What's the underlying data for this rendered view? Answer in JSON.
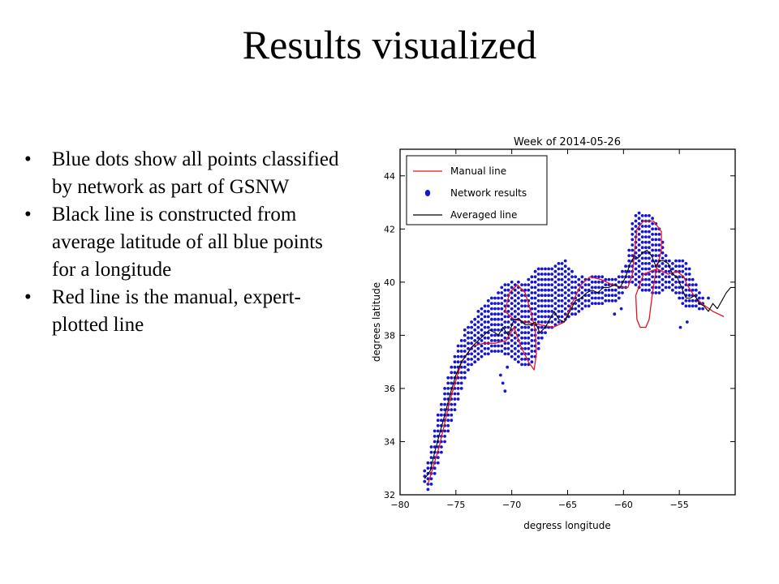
{
  "slide": {
    "title": "Results visualized",
    "bullets": [
      "Blue dots show all points classified by network as part of GSNW",
      "Black line is constructed from average latitude of all blue points for a longitude",
      "Red line is the manual, expert-plotted line"
    ]
  },
  "chart_data": {
    "type": "line",
    "title": "Week of 2014-05-26",
    "xlabel": "degress longitude",
    "ylabel": "degrees latitude",
    "xlim": [
      -80,
      -50
    ],
    "ylim": [
      32,
      45
    ],
    "xticks": [
      -80,
      -75,
      -70,
      -65,
      -60,
      -55
    ],
    "yticks": [
      32,
      34,
      36,
      38,
      40,
      42,
      44
    ],
    "grid": false,
    "legend_position": "top-left",
    "colors": {
      "manual": "#e8141c",
      "network": "#1515d4",
      "averaged": "#000000"
    },
    "series": [
      {
        "name": "Manual line",
        "kind": "line",
        "points": [
          [
            -77.5,
            32.4
          ],
          [
            -76.5,
            33.8
          ],
          [
            -75.5,
            35.6
          ],
          [
            -74.5,
            37.0
          ],
          [
            -73.5,
            37.6
          ],
          [
            -72.5,
            37.7
          ],
          [
            -71.5,
            37.7
          ],
          [
            -70.5,
            37.8
          ],
          [
            -69.8,
            38.3
          ],
          [
            -69.2,
            37.6
          ],
          [
            -68.5,
            37.0
          ],
          [
            -68.0,
            36.7
          ],
          [
            -67.8,
            37.3
          ],
          [
            -67.9,
            38.2
          ],
          [
            -68.3,
            38.9
          ],
          [
            -68.8,
            39.6
          ],
          [
            -69.5,
            39.9
          ],
          [
            -70.2,
            39.6
          ],
          [
            -70.6,
            38.9
          ],
          [
            -69.8,
            38.6
          ],
          [
            -68.8,
            38.5
          ],
          [
            -67.5,
            38.4
          ],
          [
            -66.3,
            38.3
          ],
          [
            -65.3,
            38.5
          ],
          [
            -64.5,
            39.3
          ],
          [
            -63.8,
            39.9
          ],
          [
            -63.0,
            40.2
          ],
          [
            -62.0,
            40.1
          ],
          [
            -61.0,
            39.9
          ],
          [
            -60.2,
            39.8
          ],
          [
            -59.6,
            39.8
          ],
          [
            -59.2,
            40.3
          ],
          [
            -59.0,
            41.2
          ],
          [
            -58.8,
            42.0
          ],
          [
            -58.2,
            42.3
          ],
          [
            -57.3,
            42.3
          ],
          [
            -56.6,
            41.9
          ],
          [
            -56.6,
            41.2
          ],
          [
            -57.1,
            40.4
          ],
          [
            -57.4,
            39.6
          ],
          [
            -57.7,
            38.6
          ],
          [
            -58.0,
            38.3
          ],
          [
            -58.5,
            38.3
          ],
          [
            -58.8,
            38.6
          ],
          [
            -58.9,
            39.5
          ],
          [
            -58.2,
            40.3
          ],
          [
            -57.0,
            40.5
          ],
          [
            -56.0,
            40.3
          ],
          [
            -55.2,
            40.4
          ],
          [
            -54.6,
            40.2
          ],
          [
            -54.3,
            39.9
          ],
          [
            -53.7,
            39.5
          ],
          [
            -53.0,
            39.2
          ],
          [
            -52.0,
            38.9
          ],
          [
            -51.0,
            38.7
          ]
        ]
      },
      {
        "name": "Network results",
        "kind": "scatter",
        "columns": [
          [
            -77.8,
            32.5,
            32.9
          ],
          [
            -77.5,
            32.2,
            33.2
          ],
          [
            -77.2,
            32.4,
            33.8
          ],
          [
            -76.9,
            32.8,
            34.4
          ],
          [
            -76.6,
            33.2,
            35.0
          ],
          [
            -76.3,
            33.6,
            35.5
          ],
          [
            -76.0,
            34.0,
            36.0
          ],
          [
            -75.7,
            34.4,
            36.5
          ],
          [
            -75.4,
            34.8,
            36.9
          ],
          [
            -75.1,
            35.2,
            37.3
          ],
          [
            -74.8,
            35.6,
            37.6
          ],
          [
            -74.5,
            36.0,
            37.9
          ],
          [
            -74.2,
            36.4,
            38.2
          ],
          [
            -73.9,
            36.7,
            38.4
          ],
          [
            -73.6,
            36.9,
            38.6
          ],
          [
            -73.3,
            37.0,
            38.7
          ],
          [
            -73.0,
            37.1,
            38.9
          ],
          [
            -72.7,
            37.2,
            39.1
          ],
          [
            -72.4,
            37.3,
            39.2
          ],
          [
            -72.1,
            37.3,
            39.3
          ],
          [
            -71.8,
            37.4,
            39.4
          ],
          [
            -71.5,
            37.4,
            39.5
          ],
          [
            -71.2,
            37.4,
            39.7
          ],
          [
            -70.9,
            37.4,
            39.8
          ],
          [
            -70.6,
            37.3,
            40.0
          ],
          [
            -70.3,
            37.3,
            40.0
          ],
          [
            -70.0,
            37.2,
            40.0
          ],
          [
            -69.7,
            37.1,
            40.0
          ],
          [
            -69.4,
            37.0,
            40.0
          ],
          [
            -69.1,
            36.9,
            40.0
          ],
          [
            -68.8,
            36.9,
            40.0
          ],
          [
            -68.5,
            36.9,
            40.1
          ],
          [
            -68.2,
            37.0,
            40.2
          ],
          [
            -67.9,
            37.2,
            40.4
          ],
          [
            -67.6,
            37.5,
            40.5
          ],
          [
            -67.3,
            37.9,
            40.5
          ],
          [
            -67.0,
            38.1,
            40.5
          ],
          [
            -66.7,
            38.3,
            40.5
          ],
          [
            -66.4,
            38.3,
            40.6
          ],
          [
            -66.1,
            38.4,
            40.7
          ],
          [
            -65.8,
            38.5,
            40.8
          ],
          [
            -65.5,
            38.5,
            40.8
          ],
          [
            -65.2,
            38.6,
            40.8
          ],
          [
            -64.9,
            38.7,
            40.6
          ],
          [
            -64.6,
            38.8,
            40.4
          ],
          [
            -64.3,
            38.8,
            40.3
          ],
          [
            -64.0,
            38.9,
            40.2
          ],
          [
            -63.7,
            39.0,
            40.2
          ],
          [
            -63.4,
            39.1,
            40.2
          ],
          [
            -63.1,
            39.1,
            40.2
          ],
          [
            -62.8,
            39.2,
            40.2
          ],
          [
            -62.5,
            39.2,
            40.2
          ],
          [
            -62.2,
            39.2,
            40.2
          ],
          [
            -61.9,
            39.2,
            40.2
          ],
          [
            -61.6,
            39.3,
            40.2
          ],
          [
            -61.3,
            39.3,
            40.2
          ],
          [
            -61.0,
            39.3,
            40.2
          ],
          [
            -60.7,
            39.3,
            40.2
          ],
          [
            -60.4,
            39.4,
            40.3
          ],
          [
            -60.1,
            39.6,
            40.4
          ],
          [
            -59.8,
            39.8,
            40.6
          ],
          [
            -59.5,
            40.0,
            41.2
          ],
          [
            -59.2,
            40.0,
            42.2
          ],
          [
            -58.9,
            39.9,
            42.6
          ],
          [
            -58.6,
            39.8,
            42.6
          ],
          [
            -58.3,
            39.7,
            42.6
          ],
          [
            -58.0,
            39.7,
            42.6
          ],
          [
            -57.7,
            39.7,
            42.6
          ],
          [
            -57.4,
            39.6,
            42.5
          ],
          [
            -57.1,
            39.6,
            42.3
          ],
          [
            -56.8,
            39.6,
            42.0
          ],
          [
            -56.5,
            39.7,
            41.6
          ],
          [
            -56.2,
            39.8,
            41.1
          ],
          [
            -55.9,
            39.8,
            40.8
          ],
          [
            -55.6,
            39.7,
            40.8
          ],
          [
            -55.3,
            39.6,
            40.8
          ],
          [
            -55.0,
            39.4,
            40.8
          ],
          [
            -54.7,
            39.2,
            40.8
          ],
          [
            -54.4,
            39.1,
            40.7
          ],
          [
            -54.1,
            39.1,
            40.5
          ],
          [
            -53.8,
            39.1,
            40.2
          ],
          [
            -53.5,
            39.1,
            39.9
          ],
          [
            -53.2,
            39.0,
            39.6
          ],
          [
            -52.9,
            39.0,
            39.4
          ]
        ],
        "outliers": [
          [
            -71.0,
            36.5
          ],
          [
            -70.6,
            35.9
          ],
          [
            -70.8,
            36.2
          ],
          [
            -70.4,
            36.8
          ],
          [
            -60.8,
            38.8
          ],
          [
            -60.2,
            39.0
          ],
          [
            -54.9,
            38.3
          ],
          [
            -54.3,
            38.5
          ],
          [
            -52.4,
            39.4
          ]
        ]
      },
      {
        "name": "Averaged line",
        "kind": "line",
        "points": [
          [
            -77.8,
            32.6
          ],
          [
            -77.3,
            32.9
          ],
          [
            -76.9,
            33.6
          ],
          [
            -76.4,
            34.4
          ],
          [
            -76.0,
            35.0
          ],
          [
            -75.5,
            35.8
          ],
          [
            -75.0,
            36.5
          ],
          [
            -74.5,
            37.0
          ],
          [
            -74.0,
            37.3
          ],
          [
            -73.5,
            37.6
          ],
          [
            -73.0,
            37.8
          ],
          [
            -72.5,
            38.0
          ],
          [
            -72.0,
            38.2
          ],
          [
            -71.5,
            38.1
          ],
          [
            -71.2,
            38.0
          ],
          [
            -70.8,
            38.3
          ],
          [
            -70.3,
            38.0
          ],
          [
            -69.8,
            38.6
          ],
          [
            -69.3,
            38.6
          ],
          [
            -68.8,
            38.4
          ],
          [
            -68.3,
            38.4
          ],
          [
            -67.9,
            38.5
          ],
          [
            -67.5,
            38.1
          ],
          [
            -67.0,
            38.3
          ],
          [
            -66.6,
            38.6
          ],
          [
            -66.2,
            38.9
          ],
          [
            -65.8,
            38.6
          ],
          [
            -65.3,
            38.5
          ],
          [
            -64.8,
            38.9
          ],
          [
            -64.3,
            39.3
          ],
          [
            -63.8,
            39.4
          ],
          [
            -63.3,
            39.6
          ],
          [
            -62.8,
            39.7
          ],
          [
            -62.3,
            39.6
          ],
          [
            -61.8,
            39.8
          ],
          [
            -61.3,
            39.8
          ],
          [
            -60.8,
            39.9
          ],
          [
            -60.3,
            39.8
          ],
          [
            -59.8,
            40.2
          ],
          [
            -59.4,
            40.7
          ],
          [
            -59.0,
            41.0
          ],
          [
            -58.7,
            40.9
          ],
          [
            -58.3,
            41.1
          ],
          [
            -57.9,
            41.2
          ],
          [
            -57.5,
            41.0
          ],
          [
            -57.1,
            40.6
          ],
          [
            -56.8,
            40.8
          ],
          [
            -56.4,
            40.8
          ],
          [
            -56.0,
            40.7
          ],
          [
            -55.6,
            40.3
          ],
          [
            -55.2,
            40.2
          ],
          [
            -54.8,
            39.8
          ],
          [
            -54.4,
            39.4
          ],
          [
            -54.0,
            39.4
          ],
          [
            -53.6,
            39.5
          ],
          [
            -53.2,
            39.2
          ],
          [
            -52.8,
            39.1
          ],
          [
            -52.4,
            38.9
          ],
          [
            -52.0,
            39.2
          ],
          [
            -51.6,
            39.0
          ],
          [
            -51.2,
            39.3
          ],
          [
            -50.8,
            39.6
          ],
          [
            -50.4,
            39.8
          ],
          [
            -50.0,
            39.8
          ]
        ]
      }
    ]
  }
}
